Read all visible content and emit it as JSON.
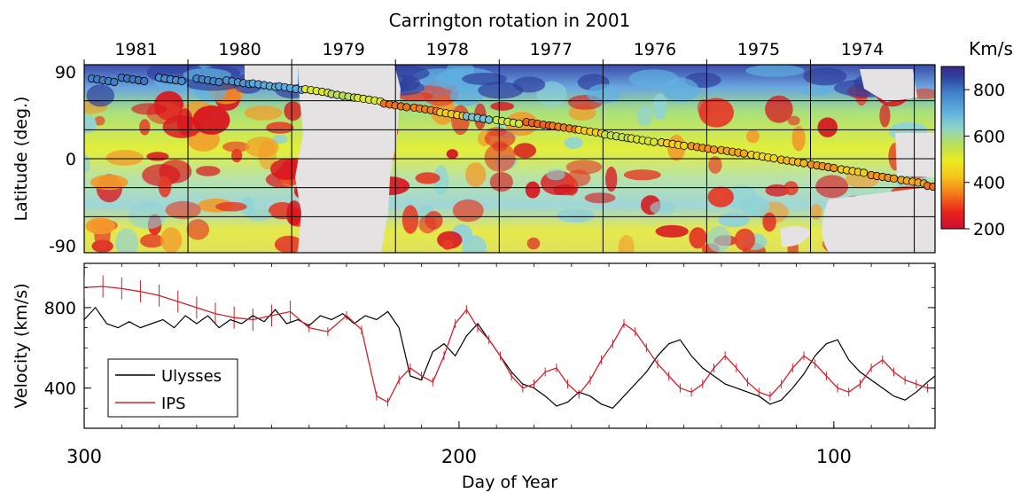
{
  "top_xlabel": "Carrington rotation in 2001",
  "bottom_xlabel": "Day of Year",
  "top_ylabel": "Latitude (deg.)",
  "bottom_ylabel": "Velocity (km/s)",
  "colorbar_title": "Km/s",
  "chart_data": [
    {
      "type": "heatmap",
      "panel": "top",
      "xlabel": "Carrington rotation in 2001",
      "ylabel": "Latitude (deg.)",
      "carrington_ticks": [
        "1981",
        "1980",
        "1979",
        "1978",
        "1977",
        "1976",
        "1975",
        "1974"
      ],
      "lat_ticks": [
        "90",
        "0",
        "-90"
      ],
      "lat_tick_values": [
        90,
        0,
        -90
      ],
      "ylim": [
        -90,
        90
      ],
      "grid_latitudes": [
        60,
        30,
        0,
        -30,
        -60
      ],
      "colorbar": {
        "label": "Km/s",
        "ticks": [
          "800",
          "600",
          "400",
          "200"
        ],
        "tick_values": [
          800,
          600,
          400,
          200
        ],
        "range": [
          200,
          900
        ],
        "colors": [
          "#c8102e",
          "#e8221c",
          "#f47d1a",
          "#f5c518",
          "#e9ec22",
          "#b9df5a",
          "#8fd3c8",
          "#5fb0e0",
          "#3f7fc8",
          "#2f3f9c",
          "#3a2a86"
        ]
      },
      "ulysses_track": {
        "description": "Ulysses latitude track colored by measured speed",
        "points": [
          {
            "day": 298,
            "lat": 83,
            "v": 760
          },
          {
            "day": 290,
            "lat": 84,
            "v": 770
          },
          {
            "day": 280,
            "lat": 84,
            "v": 740
          },
          {
            "day": 270,
            "lat": 83,
            "v": 750
          },
          {
            "day": 262,
            "lat": 81,
            "v": 730
          },
          {
            "day": 255,
            "lat": 78,
            "v": 700
          },
          {
            "day": 248,
            "lat": 75,
            "v": 700
          },
          {
            "day": 241,
            "lat": 72,
            "v": 500
          },
          {
            "day": 234,
            "lat": 67,
            "v": 550
          },
          {
            "day": 227,
            "lat": 63,
            "v": 500
          },
          {
            "day": 220,
            "lat": 57,
            "v": 330
          },
          {
            "day": 212,
            "lat": 53,
            "v": 340
          },
          {
            "day": 205,
            "lat": 48,
            "v": 420
          },
          {
            "day": 198,
            "lat": 44,
            "v": 650
          },
          {
            "day": 190,
            "lat": 40,
            "v": 520
          },
          {
            "day": 182,
            "lat": 38,
            "v": 320
          },
          {
            "day": 175,
            "lat": 34,
            "v": 340
          },
          {
            "day": 168,
            "lat": 30,
            "v": 420
          },
          {
            "day": 161,
            "lat": 25,
            "v": 540
          },
          {
            "day": 154,
            "lat": 21,
            "v": 500
          },
          {
            "day": 146,
            "lat": 17,
            "v": 430
          },
          {
            "day": 138,
            "lat": 13,
            "v": 360
          },
          {
            "day": 130,
            "lat": 9,
            "v": 380
          },
          {
            "day": 122,
            "lat": 4,
            "v": 440
          },
          {
            "day": 114,
            "lat": -1,
            "v": 400
          },
          {
            "day": 106,
            "lat": -6,
            "v": 360
          },
          {
            "day": 98,
            "lat": -11,
            "v": 420
          },
          {
            "day": 90,
            "lat": -17,
            "v": 360
          },
          {
            "day": 82,
            "lat": -22,
            "v": 380
          },
          {
            "day": 75,
            "lat": -28,
            "v": 330
          }
        ]
      }
    },
    {
      "type": "line",
      "panel": "bottom",
      "xlabel": "Day of Year",
      "ylabel": "Velocity (km/s)",
      "x_ticks": [
        "300",
        "200",
        "100"
      ],
      "x_tick_values": [
        300,
        200,
        100
      ],
      "y_ticks": [
        "800",
        "400"
      ],
      "y_tick_values": [
        800,
        400
      ],
      "xlim": [
        300,
        73
      ],
      "ylim": [
        200,
        1020
      ],
      "legend": "lower-left",
      "series": [
        {
          "name": "Ulysses",
          "color": "#000000",
          "points": [
            [
              300,
              740
            ],
            [
              297,
              800
            ],
            [
              294,
              720
            ],
            [
              291,
              700
            ],
            [
              288,
              730
            ],
            [
              285,
              700
            ],
            [
              282,
              720
            ],
            [
              279,
              740
            ],
            [
              276,
              700
            ],
            [
              273,
              760
            ],
            [
              270,
              720
            ],
            [
              267,
              760
            ],
            [
              264,
              700
            ],
            [
              261,
              740
            ],
            [
              258,
              720
            ],
            [
              255,
              760
            ],
            [
              252,
              730
            ],
            [
              249,
              790
            ],
            [
              246,
              720
            ],
            [
              243,
              740
            ],
            [
              240,
              710
            ],
            [
              237,
              760
            ],
            [
              234,
              740
            ],
            [
              231,
              770
            ],
            [
              228,
              720
            ],
            [
              225,
              760
            ],
            [
              222,
              740
            ],
            [
              219,
              780
            ],
            [
              216,
              700
            ],
            [
              213,
              460
            ],
            [
              210,
              440
            ],
            [
              207,
              580
            ],
            [
              204,
              620
            ],
            [
              201,
              560
            ],
            [
              198,
              660
            ],
            [
              195,
              720
            ],
            [
              192,
              640
            ],
            [
              189,
              560
            ],
            [
              186,
              480
            ],
            [
              183,
              420
            ],
            [
              180,
              400
            ],
            [
              177,
              360
            ],
            [
              174,
              310
            ],
            [
              171,
              330
            ],
            [
              168,
              380
            ],
            [
              165,
              360
            ],
            [
              162,
              320
            ],
            [
              159,
              300
            ],
            [
              156,
              360
            ],
            [
              153,
              420
            ],
            [
              150,
              480
            ],
            [
              147,
              560
            ],
            [
              144,
              620
            ],
            [
              141,
              640
            ],
            [
              138,
              560
            ],
            [
              135,
              500
            ],
            [
              132,
              460
            ],
            [
              129,
              420
            ],
            [
              126,
              400
            ],
            [
              123,
              380
            ],
            [
              120,
              360
            ],
            [
              117,
              320
            ],
            [
              114,
              340
            ],
            [
              111,
              400
            ],
            [
              108,
              470
            ],
            [
              105,
              560
            ],
            [
              102,
              620
            ],
            [
              99,
              640
            ],
            [
              96,
              540
            ],
            [
              93,
              480
            ],
            [
              90,
              440
            ],
            [
              87,
              400
            ],
            [
              84,
              360
            ],
            [
              81,
              340
            ],
            [
              78,
              380
            ],
            [
              75,
              430
            ],
            [
              73,
              460
            ]
          ]
        },
        {
          "name": "IPS",
          "color": "#d2202a",
          "points": [
            [
              300,
              900
            ],
            [
              295,
              905
            ],
            [
              290,
              895
            ],
            [
              285,
              880
            ],
            [
              280,
              860
            ],
            [
              275,
              830
            ],
            [
              270,
              800
            ],
            [
              265,
              770
            ],
            [
              260,
              750
            ],
            [
              255,
              740
            ],
            [
              250,
              760
            ],
            [
              245,
              780
            ],
            [
              240,
              700
            ],
            [
              235,
              680
            ],
            [
              230,
              760
            ],
            [
              226,
              690
            ],
            [
              222,
              360
            ],
            [
              219,
              330
            ],
            [
              216,
              440
            ],
            [
              213,
              500
            ],
            [
              210,
              460
            ],
            [
              207,
              430
            ],
            [
              204,
              560
            ],
            [
              201,
              720
            ],
            [
              198,
              790
            ],
            [
              195,
              700
            ],
            [
              192,
              640
            ],
            [
              189,
              560
            ],
            [
              186,
              460
            ],
            [
              183,
              400
            ],
            [
              180,
              420
            ],
            [
              177,
              480
            ],
            [
              174,
              500
            ],
            [
              171,
              420
            ],
            [
              168,
              370
            ],
            [
              165,
              440
            ],
            [
              162,
              540
            ],
            [
              159,
              620
            ],
            [
              156,
              720
            ],
            [
              153,
              680
            ],
            [
              150,
              600
            ],
            [
              147,
              520
            ],
            [
              144,
              460
            ],
            [
              141,
              400
            ],
            [
              138,
              380
            ],
            [
              135,
              420
            ],
            [
              132,
              500
            ],
            [
              129,
              560
            ],
            [
              126,
              500
            ],
            [
              123,
              430
            ],
            [
              120,
              380
            ],
            [
              117,
              360
            ],
            [
              114,
              420
            ],
            [
              111,
              500
            ],
            [
              108,
              560
            ],
            [
              105,
              520
            ],
            [
              102,
              460
            ],
            [
              99,
              400
            ],
            [
              96,
              380
            ],
            [
              93,
              420
            ],
            [
              90,
              500
            ],
            [
              87,
              540
            ],
            [
              84,
              480
            ],
            [
              81,
              440
            ],
            [
              78,
              420
            ],
            [
              75,
              400
            ]
          ]
        }
      ]
    }
  ]
}
